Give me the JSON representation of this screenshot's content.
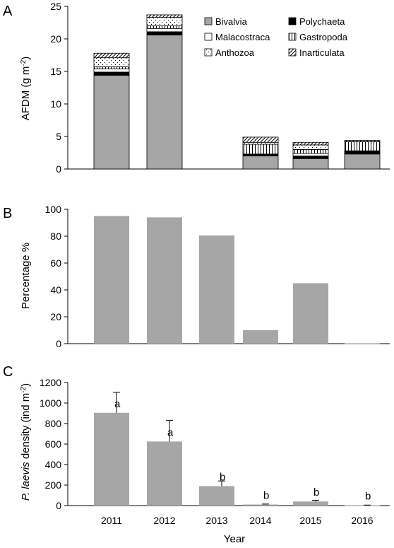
{
  "figure": {
    "x_axis_label": "Year"
  },
  "chart_data": [
    {
      "panel": "A",
      "type": "bar",
      "stacked": true,
      "ylabel": "AFDM (g m",
      "ylabel_sup": "-2",
      "ylabel_close": ")",
      "ylim": [
        0,
        25
      ],
      "yticks": [
        0,
        5,
        10,
        15,
        20,
        25
      ],
      "categories": [
        "2011",
        "2012",
        "2013",
        "2014",
        "2015",
        "2016"
      ],
      "legend_position": "top-right",
      "series": [
        {
          "name": "Bivalvia",
          "color": "#a6a6a6",
          "pattern": "solid-gray",
          "values": [
            14.4,
            20.6,
            0,
            2.0,
            1.6,
            2.3
          ]
        },
        {
          "name": "Polychaeta",
          "color": "#000000",
          "pattern": "solid-black",
          "values": [
            0.5,
            0.5,
            0,
            0.3,
            0.4,
            0.5
          ]
        },
        {
          "name": "Malacostraca",
          "color": "#ffffff",
          "pattern": "white",
          "values": [
            0.5,
            0.5,
            0,
            0,
            0.4,
            0
          ]
        },
        {
          "name": "Gastropoda",
          "color": "#ffffff",
          "pattern": "vertical-lines",
          "values": [
            0.3,
            0.4,
            0,
            1.5,
            0.6,
            1.4
          ]
        },
        {
          "name": "Anthozoa",
          "color": "#ffffff",
          "pattern": "dots",
          "values": [
            1.4,
            1.3,
            0,
            0.3,
            0.7,
            0
          ]
        },
        {
          "name": "Inarticulata",
          "color": "#ffffff",
          "pattern": "diagonal-lines",
          "values": [
            0.7,
            0.4,
            0,
            0.8,
            0.4,
            0.2
          ]
        }
      ]
    },
    {
      "panel": "B",
      "type": "bar",
      "ylabel": "Percentage %",
      "ylim": [
        0,
        100
      ],
      "yticks": [
        0,
        20,
        40,
        60,
        80,
        100
      ],
      "categories": [
        "2011",
        "2012",
        "2013",
        "2014",
        "2015",
        "2016"
      ],
      "series": [
        {
          "color": "#a6a6a6",
          "values": [
            95,
            94,
            80.5,
            10,
            45,
            0.3
          ]
        }
      ]
    },
    {
      "panel": "C",
      "type": "bar",
      "ylabel_italic": "P. laevis",
      "ylabel_rest": " density (ind m",
      "ylabel_sup": "-2",
      "ylabel_close": ")",
      "ylim": [
        0,
        1200
      ],
      "yticks": [
        0,
        200,
        400,
        600,
        800,
        1000,
        1200
      ],
      "categories": [
        "2011",
        "2012",
        "2013",
        "2014",
        "2015",
        "2016"
      ],
      "series": [
        {
          "color": "#a6a6a6",
          "values": [
            905,
            625,
            190,
            10,
            40,
            3
          ],
          "errors": [
            200,
            205,
            50,
            5,
            12,
            2
          ]
        }
      ],
      "annotations": [
        "a",
        "a",
        "b",
        "b",
        "b",
        "b"
      ]
    }
  ]
}
